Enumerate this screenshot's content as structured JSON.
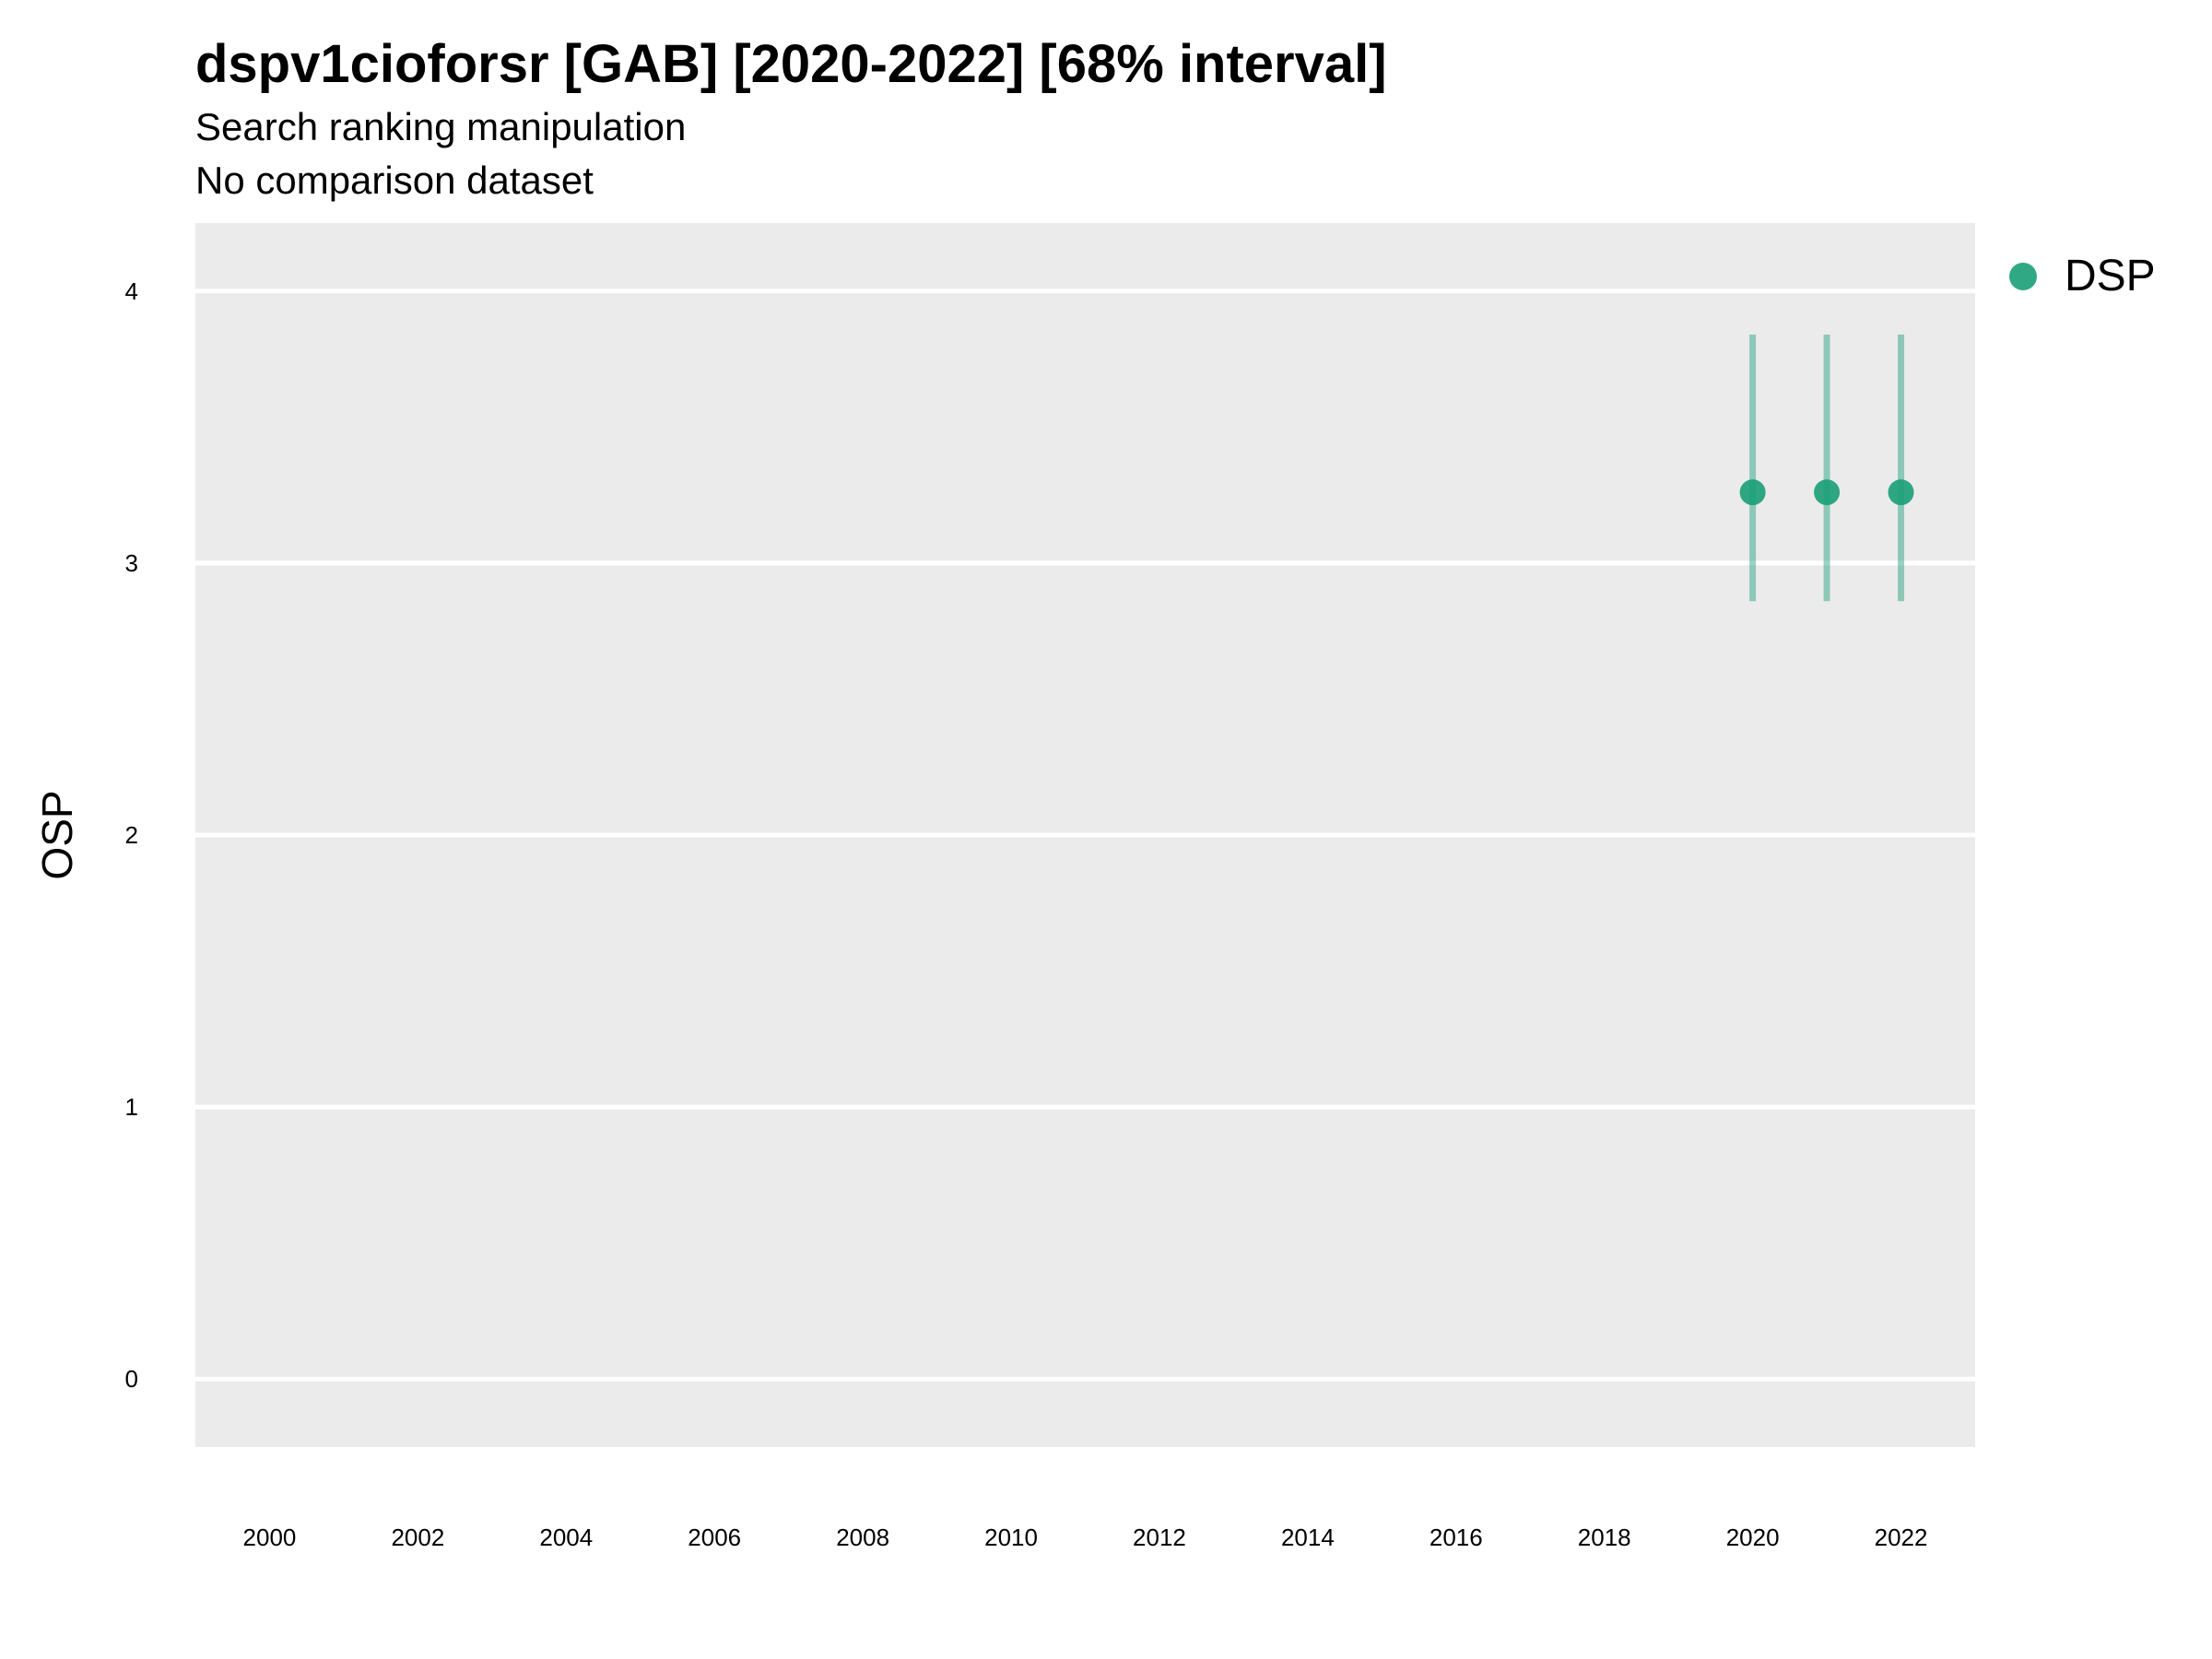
{
  "chart_data": {
    "type": "scatter",
    "title": "dspv1cioforsr [GAB] [2020-2022] [68% interval]",
    "subtitle": "Search ranking manipulation",
    "caption_line": "No comparison dataset",
    "xlabel": "",
    "ylabel": "OSP",
    "xlim": [
      1999,
      2023
    ],
    "ylim": [
      -0.25,
      4.25
    ],
    "x_ticks": [
      2000,
      2002,
      2004,
      2006,
      2008,
      2010,
      2012,
      2014,
      2016,
      2018,
      2020,
      2022
    ],
    "y_ticks": [
      0,
      1,
      2,
      3,
      4
    ],
    "grid": true,
    "legend_position": "right",
    "series": [
      {
        "name": "DSP",
        "color": "#1a9e77",
        "points": [
          {
            "x": 2020,
            "y": 3.26,
            "low": 2.86,
            "high": 3.84
          },
          {
            "x": 2021,
            "y": 3.26,
            "low": 2.86,
            "high": 3.84
          },
          {
            "x": 2022,
            "y": 3.26,
            "low": 2.86,
            "high": 3.84
          }
        ]
      }
    ]
  }
}
